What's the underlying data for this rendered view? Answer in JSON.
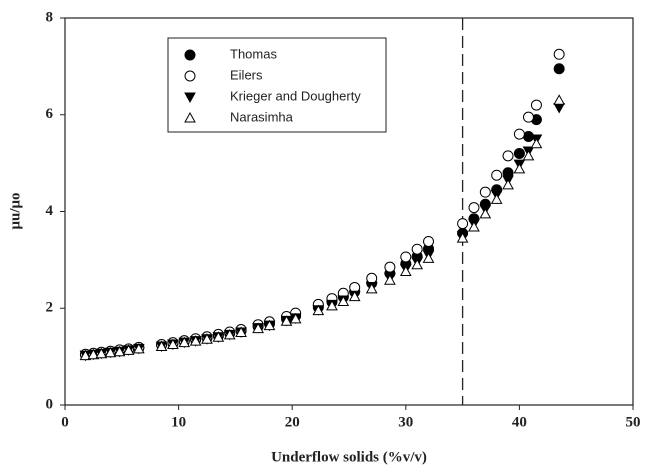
{
  "chart_data": {
    "type": "scatter",
    "x_label": "Underflow solids (%v/v)",
    "y_label": "μu/μo",
    "xlim": [
      0,
      50
    ],
    "xticks": [
      0,
      10,
      20,
      30,
      40,
      50
    ],
    "ylim": [
      0,
      8
    ],
    "yticks": [
      0,
      2,
      4,
      6,
      8
    ],
    "reference_line_x": 35,
    "x": [
      1.8,
      2.5,
      3.2,
      4,
      4.8,
      5.6,
      6.5,
      8.5,
      9.5,
      10.5,
      11.5,
      12.5,
      13.5,
      14.5,
      15.5,
      17,
      18,
      19.5,
      20.3,
      22.3,
      23.5,
      24.5,
      25.5,
      27,
      28.6,
      30,
      31,
      32,
      35,
      36,
      37,
      38,
      39,
      40,
      40.8,
      41.5,
      43.5
    ],
    "series": [
      {
        "name": "Thomas",
        "marker": "circle-filled",
        "color": "#000000",
        "values": [
          1.04,
          1.06,
          1.08,
          1.1,
          1.12,
          1.15,
          1.18,
          1.24,
          1.27,
          1.31,
          1.35,
          1.39,
          1.43,
          1.48,
          1.53,
          1.62,
          1.68,
          1.78,
          1.84,
          2.02,
          2.13,
          2.23,
          2.34,
          2.52,
          2.72,
          2.92,
          3.07,
          3.23,
          3.55,
          3.85,
          4.15,
          4.45,
          4.8,
          5.2,
          5.55,
          5.9,
          6.95
        ]
      },
      {
        "name": "Eilers",
        "marker": "circle-open",
        "color": "#000000",
        "values": [
          1.05,
          1.07,
          1.09,
          1.11,
          1.14,
          1.16,
          1.19,
          1.25,
          1.29,
          1.33,
          1.37,
          1.41,
          1.46,
          1.51,
          1.56,
          1.66,
          1.72,
          1.83,
          1.9,
          2.08,
          2.2,
          2.31,
          2.43,
          2.62,
          2.85,
          3.06,
          3.22,
          3.38,
          3.75,
          4.08,
          4.4,
          4.75,
          5.15,
          5.6,
          5.95,
          6.2,
          7.25
        ]
      },
      {
        "name": "Krieger and Dougherty",
        "marker": "triangle-down-filled",
        "color": "#000000",
        "values": [
          1.03,
          1.05,
          1.07,
          1.09,
          1.11,
          1.14,
          1.17,
          1.22,
          1.26,
          1.3,
          1.33,
          1.37,
          1.41,
          1.46,
          1.51,
          1.6,
          1.65,
          1.75,
          1.8,
          1.97,
          2.08,
          2.17,
          2.27,
          2.45,
          2.63,
          2.82,
          2.96,
          3.1,
          3.5,
          3.75,
          4.05,
          4.35,
          4.65,
          4.98,
          5.25,
          5.5,
          6.15
        ]
      },
      {
        "name": "Narasimha",
        "marker": "triangle-up-open",
        "color": "#000000",
        "values": [
          1.02,
          1.04,
          1.06,
          1.08,
          1.1,
          1.13,
          1.16,
          1.21,
          1.25,
          1.29,
          1.32,
          1.36,
          1.4,
          1.45,
          1.5,
          1.58,
          1.64,
          1.73,
          1.78,
          1.95,
          2.05,
          2.14,
          2.24,
          2.4,
          2.58,
          2.76,
          2.9,
          3.03,
          3.45,
          3.68,
          3.95,
          4.25,
          4.55,
          4.88,
          5.15,
          5.4,
          6.3
        ]
      }
    ]
  }
}
